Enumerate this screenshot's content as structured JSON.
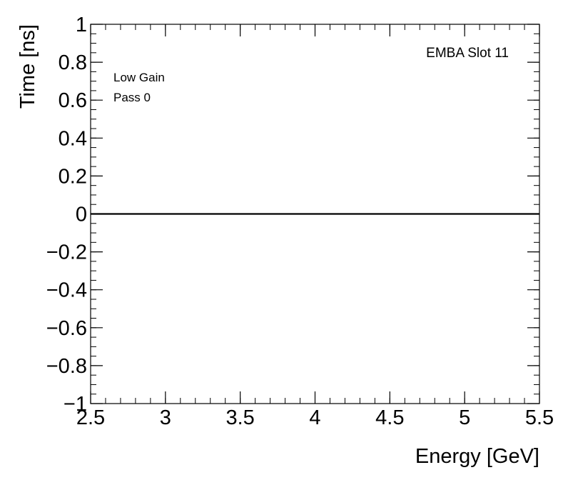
{
  "chart_data": {
    "type": "line",
    "xlabel": "Energy [GeV]",
    "ylabel": "Time [ns]",
    "xlim": [
      2.5,
      5.5
    ],
    "ylim": [
      -1,
      1
    ],
    "x_ticks": [
      2.5,
      3,
      3.5,
      4,
      4.5,
      5,
      5.5
    ],
    "x_tick_labels": [
      "2.5",
      "3",
      "3.5",
      "4",
      "4.5",
      "5",
      "5.5"
    ],
    "y_ticks": [
      -1,
      -0.8,
      -0.6,
      -0.4,
      -0.2,
      0,
      0.2,
      0.4,
      0.6,
      0.8,
      1
    ],
    "y_tick_labels": [
      "−1",
      "−0.8",
      "−0.6",
      "−0.4",
      "−0.2",
      "0",
      "0.2",
      "0.4",
      "0.6",
      "0.8",
      "1"
    ],
    "series": [
      {
        "x": [
          2.5,
          5.5
        ],
        "y": [
          0,
          0
        ]
      }
    ],
    "annotations": {
      "top_right": "EMBA Slot 11",
      "line1": "Low Gain",
      "line2": "Pass 0"
    },
    "grid": false
  }
}
